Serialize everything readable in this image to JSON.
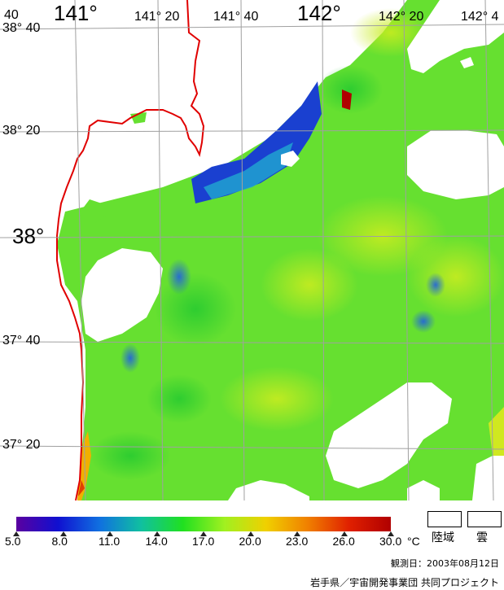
{
  "lon_labels": [
    "141°",
    "141° 20",
    "141° 40",
    "142°",
    "142° 20",
    "142° 4"
  ],
  "lat_labels": [
    "38° 40",
    "38° 20",
    "38°",
    "37° 40",
    "37° 20"
  ],
  "corner_label": "40",
  "colorbar": {
    "ticks": [
      "5.0",
      "8.0",
      "11.0",
      "14.0",
      "17.0",
      "20.0",
      "23.0",
      "26.0",
      "30.0"
    ],
    "unit": "°C",
    "colors": [
      "#5a00a0",
      "#1010d0",
      "#1070e0",
      "#10c0a0",
      "#20e020",
      "#a0f020",
      "#f0d000",
      "#f08000",
      "#e02000",
      "#b00000"
    ]
  },
  "legend": {
    "land": "陸域",
    "cloud": "雲"
  },
  "observation_date": "観測日：2003年08月12日",
  "credit": "岩手県／宇宙開発事業団 共同プロジェクト",
  "colors": {
    "coastline": "#e00000",
    "grid": "#a0a0a0",
    "sea": "#66e030"
  }
}
